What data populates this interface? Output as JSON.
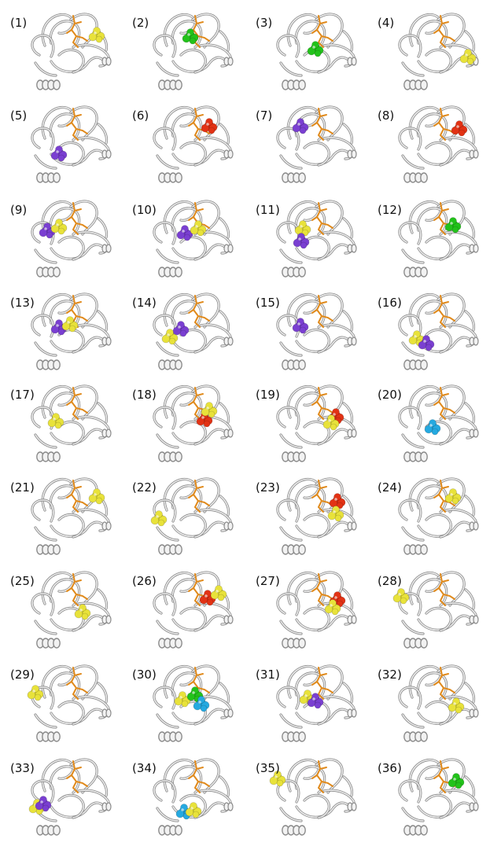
{
  "panels": [
    {
      "label": "(1)",
      "highlights": [
        {
          "color": "yellow"
        }
      ]
    },
    {
      "label": "(2)",
      "highlights": [
        {
          "color": "green"
        }
      ]
    },
    {
      "label": "(3)",
      "highlights": [
        {
          "color": "green"
        }
      ]
    },
    {
      "label": "(4)",
      "highlights": [
        {
          "color": "yellow"
        }
      ]
    },
    {
      "label": "(5)",
      "highlights": [
        {
          "color": "purple"
        }
      ]
    },
    {
      "label": "(6)",
      "highlights": [
        {
          "color": "red"
        }
      ]
    },
    {
      "label": "(7)",
      "highlights": [
        {
          "color": "purple"
        }
      ]
    },
    {
      "label": "(8)",
      "highlights": [
        {
          "color": "red"
        }
      ]
    },
    {
      "label": "(9)",
      "highlights": [
        {
          "color": "purple"
        },
        {
          "color": "yellow"
        }
      ]
    },
    {
      "label": "(10)",
      "highlights": [
        {
          "color": "purple"
        },
        {
          "color": "yellow"
        }
      ]
    },
    {
      "label": "(11)",
      "highlights": [
        {
          "color": "yellow"
        },
        {
          "color": "purple"
        }
      ]
    },
    {
      "label": "(12)",
      "highlights": [
        {
          "color": "green"
        }
      ]
    },
    {
      "label": "(13)",
      "highlights": [
        {
          "color": "purple"
        },
        {
          "color": "yellow"
        }
      ]
    },
    {
      "label": "(14)",
      "highlights": [
        {
          "color": "purple"
        },
        {
          "color": "yellow"
        }
      ]
    },
    {
      "label": "(15)",
      "highlights": [
        {
          "color": "purple"
        }
      ]
    },
    {
      "label": "(16)",
      "highlights": [
        {
          "color": "yellow"
        },
        {
          "color": "purple"
        }
      ]
    },
    {
      "label": "(17)",
      "highlights": [
        {
          "color": "yellow"
        }
      ]
    },
    {
      "label": "(18)",
      "highlights": [
        {
          "color": "red"
        },
        {
          "color": "yellow"
        }
      ]
    },
    {
      "label": "(19)",
      "highlights": [
        {
          "color": "red"
        },
        {
          "color": "yellow"
        }
      ]
    },
    {
      "label": "(20)",
      "highlights": [
        {
          "color": "cyan"
        }
      ]
    },
    {
      "label": "(21)",
      "highlights": [
        {
          "color": "yellow"
        }
      ]
    },
    {
      "label": "(22)",
      "highlights": [
        {
          "color": "yellow"
        }
      ]
    },
    {
      "label": "(23)",
      "highlights": [
        {
          "color": "red"
        },
        {
          "color": "yellow"
        }
      ]
    },
    {
      "label": "(24)",
      "highlights": [
        {
          "color": "yellow"
        }
      ]
    },
    {
      "label": "(25)",
      "highlights": [
        {
          "color": "yellow"
        }
      ]
    },
    {
      "label": "(26)",
      "highlights": [
        {
          "color": "red"
        },
        {
          "color": "yellow"
        }
      ]
    },
    {
      "label": "(27)",
      "highlights": [
        {
          "color": "red"
        },
        {
          "color": "yellow"
        }
      ]
    },
    {
      "label": "(28)",
      "highlights": [
        {
          "color": "yellow"
        }
      ]
    },
    {
      "label": "(29)",
      "highlights": [
        {
          "color": "yellow"
        }
      ]
    },
    {
      "label": "(30)",
      "highlights": [
        {
          "color": "yellow"
        },
        {
          "color": "green"
        },
        {
          "color": "cyan"
        }
      ]
    },
    {
      "label": "(31)",
      "highlights": [
        {
          "color": "yellow"
        },
        {
          "color": "purple"
        }
      ]
    },
    {
      "label": "(32)",
      "highlights": [
        {
          "color": "yellow"
        }
      ]
    },
    {
      "label": "(33)",
      "highlights": [
        {
          "color": "yellow"
        },
        {
          "color": "purple"
        }
      ]
    },
    {
      "label": "(34)",
      "highlights": [
        {
          "color": "cyan"
        },
        {
          "color": "yellow"
        }
      ]
    },
    {
      "label": "(35)",
      "highlights": [
        {
          "color": "yellow"
        }
      ]
    },
    {
      "label": "(36)",
      "highlights": [
        {
          "color": "green"
        }
      ]
    }
  ],
  "colors": {
    "yellow": "#e8e23a",
    "green": "#22c21a",
    "purple": "#7a3fd1",
    "red": "#e23214",
    "cyan": "#25a9e0",
    "ligand": "#e08a1c",
    "protein": "#bdbdbd",
    "protein_dark": "#8a8a8a"
  }
}
